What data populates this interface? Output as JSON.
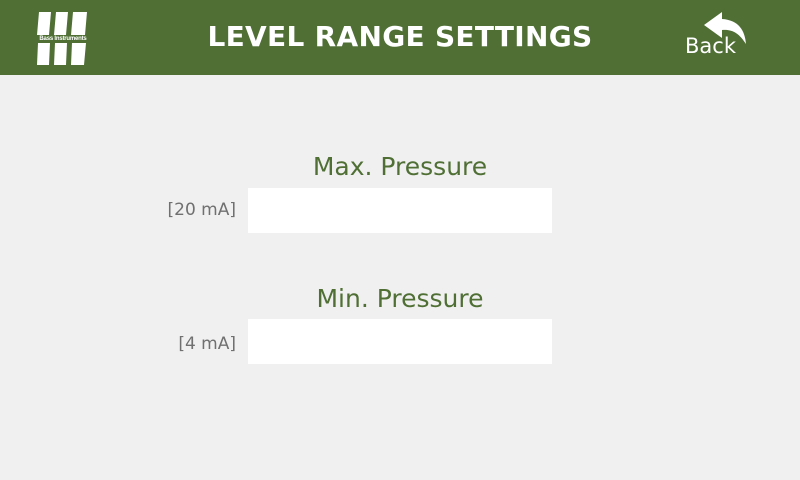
{
  "header": {
    "title": "LEVEL RANGE SETTINGS",
    "logo_text": "Bass Instruments",
    "back_label": "Back"
  },
  "fields": {
    "max": {
      "title": "Max. Pressure",
      "unit": "[20 mA]",
      "value": "",
      "placeholder": ""
    },
    "min": {
      "title": "Min. Pressure",
      "unit": "[4 mA]",
      "value": "",
      "placeholder": ""
    }
  },
  "icons": {
    "logo": "logo-icon",
    "back": "back-arrow-icon"
  },
  "colors": {
    "header_bg": "#4f6f35",
    "accent_text": "#4f6f35",
    "page_bg": "#f0f0f0",
    "unit_text": "#707070",
    "input_bg": "#ffffff"
  }
}
